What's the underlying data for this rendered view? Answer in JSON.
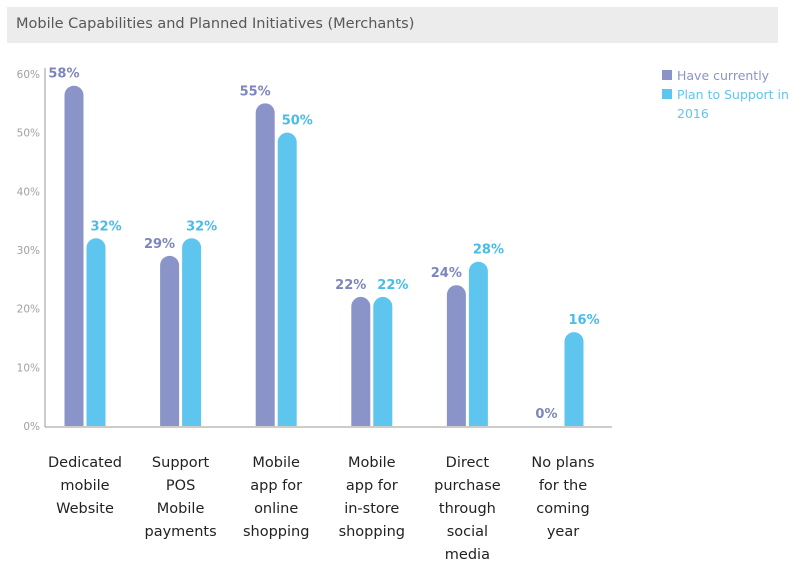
{
  "title": "Mobile Capabilities and Planned Initiatives (Merchants)",
  "colors": {
    "have": "#8a94c9",
    "plan": "#5ec6ee",
    "title_bg": "#ececec",
    "axis": "#9a9a9a"
  },
  "chart_data": {
    "type": "bar",
    "categories": [
      "Dedicated mobile Website",
      "Support POS Mobile payments",
      "Mobile app for online shopping",
      "Mobile app for in-store shopping",
      "Direct purchase through social media",
      "No plans for the coming year"
    ],
    "category_lines": [
      [
        "Dedicated",
        "mobile",
        "Website"
      ],
      [
        "Support",
        "POS",
        "Mobile",
        "payments"
      ],
      [
        "Mobile",
        "app for",
        "online",
        "shopping"
      ],
      [
        "Mobile",
        "app for",
        "in-store",
        "shopping"
      ],
      [
        "Direct",
        "purchase",
        "through",
        "social",
        "media"
      ],
      [
        "No plans",
        "for the",
        "coming",
        "year"
      ]
    ],
    "series": [
      {
        "name": "Have currently",
        "values": [
          58,
          29,
          55,
          22,
          24,
          0
        ],
        "labels": [
          "58%",
          "29%",
          "55%",
          "22%",
          "24%",
          "0%"
        ]
      },
      {
        "name": "Plan to Support in 2016",
        "values": [
          32,
          32,
          50,
          22,
          28,
          16
        ],
        "labels": [
          "32%",
          "32%",
          "50%",
          "22%",
          "28%",
          "16%"
        ]
      }
    ],
    "ylim": [
      0,
      60
    ],
    "yticks": [
      0,
      10,
      20,
      30,
      40,
      50,
      60
    ],
    "ytick_labels": [
      "0%",
      "10%",
      "20%",
      "30%",
      "40%",
      "50%",
      "60%"
    ],
    "xlabel": "",
    "ylabel": "",
    "grid": false,
    "legend": "top-right"
  }
}
